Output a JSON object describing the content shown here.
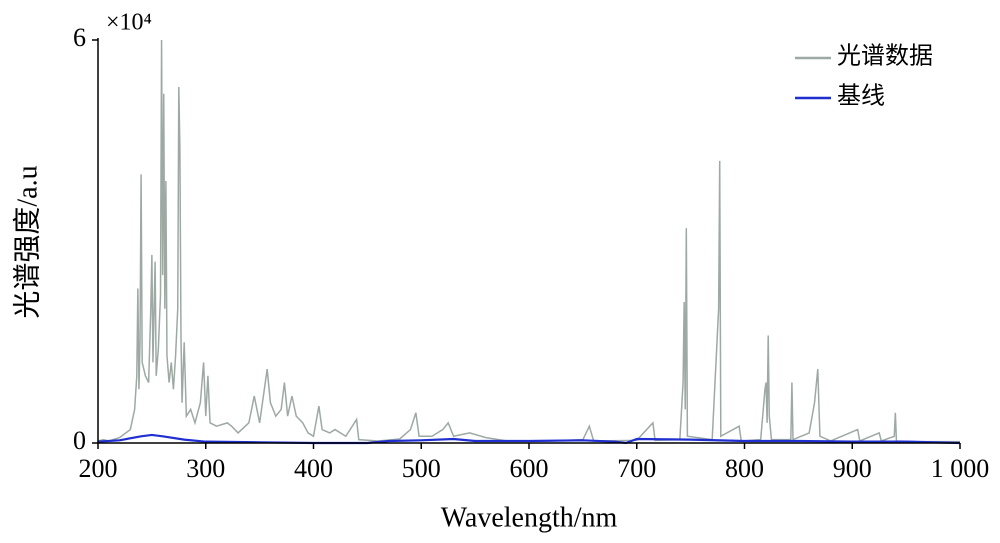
{
  "chart_data": {
    "type": "line",
    "y_label": "光谱强度/a.u",
    "x_label": "Wavelength/nm",
    "y_multiplier": "×10⁴",
    "legend": "upper right",
    "xlim": [
      200,
      1000
    ],
    "xticks": [
      200,
      300,
      400,
      500,
      600,
      700,
      800,
      900,
      {
        "value": 1000,
        "label": "1 000"
      }
    ],
    "ylim": [
      0,
      6
    ],
    "yticks": [
      0,
      6
    ],
    "series": [
      {
        "name": "光谱数据",
        "color": "#9ea9a4",
        "x": [
          200,
          205,
          210,
          220,
          230,
          234,
          236,
          237,
          238,
          239,
          240,
          241,
          244,
          247,
          249,
          250,
          251,
          253,
          254,
          256,
          258,
          259,
          260,
          261,
          262,
          263,
          264,
          266,
          268,
          270,
          272,
          274,
          275,
          276,
          277,
          278,
          280,
          282,
          286,
          290,
          295,
          298,
          300,
          302,
          304,
          310,
          320,
          324,
          330,
          340,
          345,
          350,
          357,
          360,
          365,
          370,
          373,
          376,
          380,
          384,
          390,
          395,
          400,
          405,
          408,
          415,
          420,
          430,
          440,
          442,
          460,
          480,
          490,
          495,
          498,
          510,
          520,
          525,
          530,
          545,
          560,
          580,
          620,
          650,
          656,
          660,
          700,
          715,
          717,
          740,
          743,
          744,
          745,
          746,
          747,
          770,
          776,
          777,
          778,
          795,
          797,
          815,
          819,
          820,
          821,
          822,
          823,
          825,
          843,
          844,
          845,
          860,
          865,
          868,
          870,
          880,
          905,
          907,
          925,
          927,
          939,
          940,
          941,
          960,
          1000
        ],
        "values": [
          0.03,
          0.05,
          0.03,
          0.08,
          0.2,
          0.5,
          1.0,
          2.3,
          0.8,
          1.5,
          4.0,
          1.2,
          1.0,
          0.9,
          2.0,
          2.8,
          1.2,
          2.7,
          1.0,
          1.4,
          2.2,
          6.0,
          2.5,
          5.2,
          2.0,
          3.9,
          1.3,
          0.9,
          1.2,
          0.8,
          1.3,
          2.0,
          5.3,
          4.4,
          1.6,
          0.6,
          1.5,
          0.4,
          0.5,
          0.3,
          0.6,
          1.2,
          0.4,
          1.0,
          0.3,
          0.25,
          0.3,
          0.25,
          0.15,
          0.3,
          0.7,
          0.3,
          1.1,
          0.6,
          0.4,
          0.5,
          0.9,
          0.4,
          0.7,
          0.4,
          0.3,
          0.15,
          0.1,
          0.55,
          0.2,
          0.15,
          0.2,
          0.1,
          0.35,
          0.05,
          0.03,
          0.06,
          0.2,
          0.45,
          0.1,
          0.1,
          0.2,
          0.3,
          0.1,
          0.15,
          0.08,
          0.03,
          0.03,
          0.05,
          0.25,
          0.03,
          0.04,
          0.3,
          0.04,
          0.05,
          0.9,
          2.1,
          0.5,
          3.2,
          0.1,
          0.05,
          2.0,
          4.2,
          0.1,
          0.25,
          0.03,
          0.05,
          0.8,
          0.9,
          0.3,
          1.6,
          0.4,
          0.05,
          0.05,
          0.9,
          0.05,
          0.15,
          0.6,
          1.1,
          0.1,
          0.03,
          0.2,
          0.03,
          0.15,
          0.03,
          0.1,
          0.45,
          0.03,
          0.02,
          0.02
        ]
      },
      {
        "name": "基线",
        "color": "#1f2fd0",
        "x": [
          200,
          220,
          240,
          250,
          260,
          280,
          300,
          350,
          400,
          450,
          470,
          500,
          530,
          550,
          600,
          650,
          680,
          690,
          700,
          750,
          800,
          850,
          900,
          950,
          1000
        ],
        "values": [
          0.02,
          0.04,
          0.1,
          0.12,
          0.1,
          0.05,
          0.02,
          0.01,
          0.0,
          0.0,
          0.03,
          0.04,
          0.06,
          0.03,
          0.03,
          0.04,
          0.02,
          0.0,
          0.06,
          0.05,
          0.03,
          0.03,
          0.02,
          0.02,
          0.0
        ]
      }
    ]
  }
}
